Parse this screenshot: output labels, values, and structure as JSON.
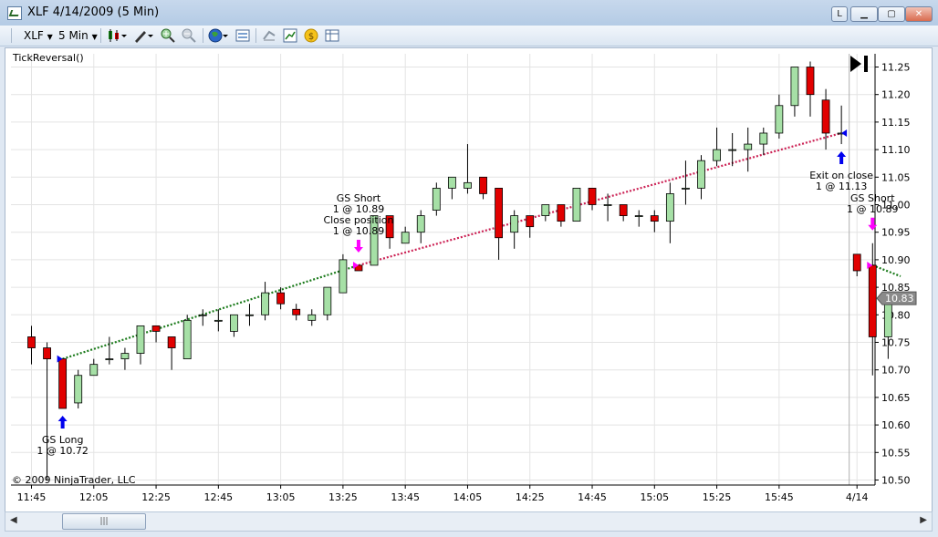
{
  "window": {
    "title": "XLF  4/14/2009 (5 Min)"
  },
  "toolbar": {
    "instrument": "XLF",
    "period": "5 Min"
  },
  "chart_header": {
    "indicator": "TickReversal()"
  },
  "copyright": "© 2009 NinjaTrader, LLC",
  "colors": {
    "up": "#a6e0a6",
    "down": "#e10000",
    "trend_up": "#1a7a1a",
    "trend_down": "#cc2255",
    "long_marker": "#0000ee",
    "short_marker": "#ff00ff"
  },
  "chart_data": {
    "type": "candlestick",
    "title": "",
    "xlabel": "",
    "ylabel": "",
    "ylim": [
      10.49,
      11.28
    ],
    "grid": true,
    "yticks": [
      "10.50",
      "10.55",
      "10.60",
      "10.65",
      "10.70",
      "10.75",
      "10.80",
      "10.85",
      "10.90",
      "10.95",
      "11.00",
      "11.05",
      "11.10",
      "11.15",
      "11.20",
      "11.25"
    ],
    "xtick_labels": [
      {
        "bar": 0,
        "label": "11:45"
      },
      {
        "bar": 4,
        "label": "12:05"
      },
      {
        "bar": 8,
        "label": "12:25"
      },
      {
        "bar": 12,
        "label": "12:45"
      },
      {
        "bar": 16,
        "label": "13:05"
      },
      {
        "bar": 20,
        "label": "13:25"
      },
      {
        "bar": 24,
        "label": "13:45"
      },
      {
        "bar": 28,
        "label": "14:05"
      },
      {
        "bar": 32,
        "label": "14:25"
      },
      {
        "bar": 36,
        "label": "14:45"
      },
      {
        "bar": 40,
        "label": "15:05"
      },
      {
        "bar": 44,
        "label": "15:25"
      },
      {
        "bar": 48,
        "label": "15:45"
      },
      {
        "bar": 53,
        "label": "4/14"
      }
    ],
    "session_break_after_bar": 52,
    "last_price": "10.83",
    "candles": [
      {
        "o": 10.76,
        "h": 10.78,
        "l": 10.71,
        "c": 10.74
      },
      {
        "o": 10.74,
        "h": 10.75,
        "l": 10.5,
        "c": 10.72
      },
      {
        "o": 10.72,
        "h": 10.72,
        "l": 10.63,
        "c": 10.63
      },
      {
        "o": 10.64,
        "h": 10.7,
        "l": 10.63,
        "c": 10.69
      },
      {
        "o": 10.69,
        "h": 10.72,
        "l": 10.69,
        "c": 10.71
      },
      {
        "o": 10.72,
        "h": 10.76,
        "l": 10.71,
        "c": 10.72
      },
      {
        "o": 10.72,
        "h": 10.74,
        "l": 10.7,
        "c": 10.73
      },
      {
        "o": 10.73,
        "h": 10.78,
        "l": 10.71,
        "c": 10.78
      },
      {
        "o": 10.78,
        "h": 10.78,
        "l": 10.75,
        "c": 10.77
      },
      {
        "o": 10.76,
        "h": 10.76,
        "l": 10.7,
        "c": 10.74
      },
      {
        "o": 10.72,
        "h": 10.8,
        "l": 10.72,
        "c": 10.79
      },
      {
        "o": 10.8,
        "h": 10.81,
        "l": 10.78,
        "c": 10.8
      },
      {
        "o": 10.79,
        "h": 10.81,
        "l": 10.77,
        "c": 10.79
      },
      {
        "o": 10.77,
        "h": 10.8,
        "l": 10.76,
        "c": 10.8
      },
      {
        "o": 10.8,
        "h": 10.82,
        "l": 10.78,
        "c": 10.8
      },
      {
        "o": 10.8,
        "h": 10.86,
        "l": 10.79,
        "c": 10.84
      },
      {
        "o": 10.84,
        "h": 10.85,
        "l": 10.81,
        "c": 10.82
      },
      {
        "o": 10.81,
        "h": 10.82,
        "l": 10.79,
        "c": 10.8
      },
      {
        "o": 10.79,
        "h": 10.81,
        "l": 10.78,
        "c": 10.8
      },
      {
        "o": 10.8,
        "h": 10.85,
        "l": 10.79,
        "c": 10.85
      },
      {
        "o": 10.84,
        "h": 10.91,
        "l": 10.84,
        "c": 10.9
      },
      {
        "o": 10.89,
        "h": 10.89,
        "l": 10.88,
        "c": 10.88
      },
      {
        "o": 10.89,
        "h": 10.98,
        "l": 10.89,
        "c": 10.98
      },
      {
        "o": 10.98,
        "h": 10.98,
        "l": 10.92,
        "c": 10.94
      },
      {
        "o": 10.93,
        "h": 10.96,
        "l": 10.93,
        "c": 10.95
      },
      {
        "o": 10.95,
        "h": 10.99,
        "l": 10.93,
        "c": 10.98
      },
      {
        "o": 10.99,
        "h": 11.04,
        "l": 10.98,
        "c": 11.03
      },
      {
        "o": 11.03,
        "h": 11.05,
        "l": 11.01,
        "c": 11.05
      },
      {
        "o": 11.03,
        "h": 11.11,
        "l": 11.02,
        "c": 11.04
      },
      {
        "o": 11.05,
        "h": 11.05,
        "l": 11.01,
        "c": 11.02
      },
      {
        "o": 11.03,
        "h": 11.03,
        "l": 10.9,
        "c": 10.94
      },
      {
        "o": 10.95,
        "h": 10.99,
        "l": 10.92,
        "c": 10.98
      },
      {
        "o": 10.98,
        "h": 10.98,
        "l": 10.94,
        "c": 10.96
      },
      {
        "o": 10.98,
        "h": 11.0,
        "l": 10.97,
        "c": 11.0
      },
      {
        "o": 11.0,
        "h": 11.0,
        "l": 10.96,
        "c": 10.97
      },
      {
        "o": 10.97,
        "h": 11.03,
        "l": 10.97,
        "c": 11.03
      },
      {
        "o": 11.03,
        "h": 11.03,
        "l": 10.99,
        "c": 11.0
      },
      {
        "o": 11.0,
        "h": 11.02,
        "l": 10.97,
        "c": 11.0
      },
      {
        "o": 11.0,
        "h": 11.0,
        "l": 10.97,
        "c": 10.98
      },
      {
        "o": 10.98,
        "h": 10.99,
        "l": 10.96,
        "c": 10.98
      },
      {
        "o": 10.98,
        "h": 10.99,
        "l": 10.95,
        "c": 10.97
      },
      {
        "o": 10.97,
        "h": 11.04,
        "l": 10.93,
        "c": 11.02
      },
      {
        "o": 11.03,
        "h": 11.08,
        "l": 11.0,
        "c": 11.03
      },
      {
        "o": 11.03,
        "h": 11.09,
        "l": 11.01,
        "c": 11.08
      },
      {
        "o": 11.08,
        "h": 11.14,
        "l": 11.07,
        "c": 11.1
      },
      {
        "o": 11.1,
        "h": 11.13,
        "l": 11.07,
        "c": 11.1
      },
      {
        "o": 11.1,
        "h": 11.14,
        "l": 11.06,
        "c": 11.11
      },
      {
        "o": 11.11,
        "h": 11.14,
        "l": 11.09,
        "c": 11.13
      },
      {
        "o": 11.13,
        "h": 11.2,
        "l": 11.12,
        "c": 11.18
      },
      {
        "o": 11.18,
        "h": 11.25,
        "l": 11.16,
        "c": 11.25
      },
      {
        "o": 11.25,
        "h": 11.26,
        "l": 11.16,
        "c": 11.2
      },
      {
        "o": 11.19,
        "h": 11.21,
        "l": 11.1,
        "c": 11.13
      },
      {
        "o": 11.13,
        "h": 11.18,
        "l": 11.11,
        "c": 11.13
      },
      {
        "o": 10.91,
        "h": 10.91,
        "l": 10.87,
        "c": 10.88
      },
      {
        "o": 10.89,
        "h": 10.93,
        "l": 10.69,
        "c": 10.76
      },
      {
        "o": 10.76,
        "h": 10.83,
        "l": 10.72,
        "c": 10.83
      }
    ],
    "trend_lines": [
      {
        "from_bar": 2,
        "from_price": 10.72,
        "to_bar": 21,
        "to_price": 10.89,
        "style": "up"
      },
      {
        "from_bar": 21,
        "from_price": 10.89,
        "to_bar": 52,
        "to_price": 11.13,
        "style": "down"
      },
      {
        "from_bar": 54,
        "from_price": 10.89,
        "to_bar": 55.8,
        "to_price": 10.87,
        "style": "up"
      }
    ],
    "executions": [
      {
        "bar": 2,
        "type": "long",
        "lines": [
          "GS Long",
          "1 @ 10.72"
        ],
        "label_pos": "below"
      },
      {
        "bar": 21,
        "type": "short",
        "lines": [
          "GS Short",
          "1 @ 10.89",
          "Close position",
          "1 @ 10.89"
        ],
        "label_pos": "above"
      },
      {
        "bar": 52,
        "type": "exit",
        "lines": [
          "Exit on close",
          "1 @ 11.13"
        ],
        "label_pos": "below"
      },
      {
        "bar": 54,
        "type": "short",
        "lines": [
          "GS Short",
          "1 @ 10.89"
        ],
        "label_pos": "above"
      }
    ]
  }
}
